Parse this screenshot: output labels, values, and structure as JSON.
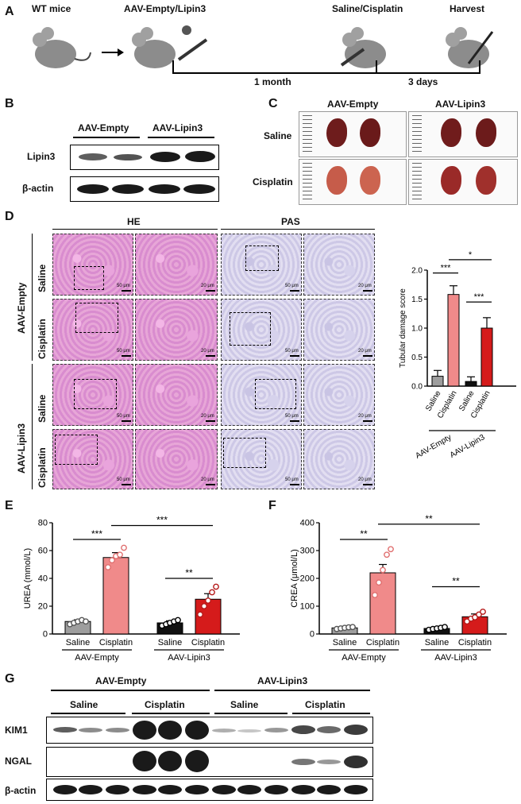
{
  "panel_letters": [
    "A",
    "B",
    "C",
    "D",
    "E",
    "F",
    "G"
  ],
  "panel_a": {
    "steps": [
      "WT mice",
      "AAV-Empty/Lipin3",
      "Saline/Cisplatin",
      "Harvest"
    ],
    "durations": [
      "1 month",
      "3 days"
    ]
  },
  "panel_b": {
    "groups": [
      "AAV-Empty",
      "AAV-Lipin3"
    ],
    "rows": [
      "Lipin3",
      "β-actin"
    ]
  },
  "panel_c": {
    "cols": [
      "AAV-Empty",
      "AAV-Lipin3"
    ],
    "rows": [
      "Saline",
      "Cisplatin"
    ]
  },
  "panel_d": {
    "stains": [
      "HE",
      "PAS"
    ],
    "groups": [
      "AAV-Empty",
      "AAV-Lipin3"
    ],
    "rows": [
      "Saline",
      "Cisplatin",
      "Saline",
      "Cisplatin"
    ],
    "scale_low": "50 μm",
    "scale_high": "20 μm"
  },
  "chart_d": {
    "type": "bar",
    "ylabel": "Tubular damage score",
    "ylim": [
      0,
      2.0
    ],
    "yticks": [
      "0.0",
      "0.5",
      "1.0",
      "1.5",
      "2.0"
    ],
    "categories": [
      "Saline",
      "Cisplatin",
      "Saline",
      "Cisplatin"
    ],
    "groups": [
      "AAV-Empty",
      "AAV-Lipin3"
    ],
    "values": [
      0.17,
      1.58,
      0.08,
      1.0
    ],
    "errors": [
      0.1,
      0.15,
      0.08,
      0.18
    ],
    "colors": [
      "#9e9e9e",
      "#f08a8a",
      "#111111",
      "#d51b1b"
    ],
    "sig": [
      "***",
      "*",
      "***"
    ]
  },
  "chart_e": {
    "type": "bar",
    "ylabel": "UREA (mmol/L)",
    "ylim": [
      0,
      80
    ],
    "yticks": [
      "0",
      "20",
      "40",
      "60",
      "80"
    ],
    "categories": [
      "Saline",
      "Cisplatin",
      "Saline",
      "Cisplatin"
    ],
    "groups": [
      "AAV-Empty",
      "AAV-Lipin3"
    ],
    "values": [
      9,
      55,
      8,
      25
    ],
    "errors": [
      1.2,
      3.5,
      1.5,
      4.0
    ],
    "points": [
      [
        7,
        8,
        9,
        10,
        9
      ],
      [
        48,
        53,
        56,
        57,
        62
      ],
      [
        6,
        7,
        8,
        9,
        10
      ],
      [
        14,
        20,
        24,
        30,
        34
      ]
    ],
    "colors": [
      "#9e9e9e",
      "#f08a8a",
      "#111111",
      "#d51b1b"
    ],
    "sig": [
      "***",
      "***",
      "**"
    ]
  },
  "chart_f": {
    "type": "bar",
    "ylabel": "CREA (μmol/L)",
    "ylim": [
      0,
      400
    ],
    "yticks": [
      "0",
      "100",
      "200",
      "300",
      "400"
    ],
    "categories": [
      "Saline",
      "Cisplatin",
      "Saline",
      "Cisplatin"
    ],
    "groups": [
      "AAV-Empty",
      "AAV-Lipin3"
    ],
    "values": [
      22,
      220,
      20,
      62
    ],
    "errors": [
      3,
      30,
      4,
      10
    ],
    "points": [
      [
        18,
        20,
        22,
        24,
        25
      ],
      [
        140,
        185,
        230,
        285,
        305
      ],
      [
        15,
        18,
        20,
        22,
        25
      ],
      [
        45,
        55,
        60,
        70,
        80
      ]
    ],
    "colors": [
      "#9e9e9e",
      "#f08a8a",
      "#111111",
      "#d51b1b"
    ],
    "sig": [
      "**",
      "**",
      "**"
    ]
  },
  "panel_g": {
    "groups": [
      "AAV-Empty",
      "AAV-Lipin3"
    ],
    "subgroups": [
      "Saline",
      "Cisplatin",
      "Saline",
      "Cisplatin"
    ],
    "rows": [
      "KIM1",
      "NGAL",
      "β-actin"
    ]
  }
}
